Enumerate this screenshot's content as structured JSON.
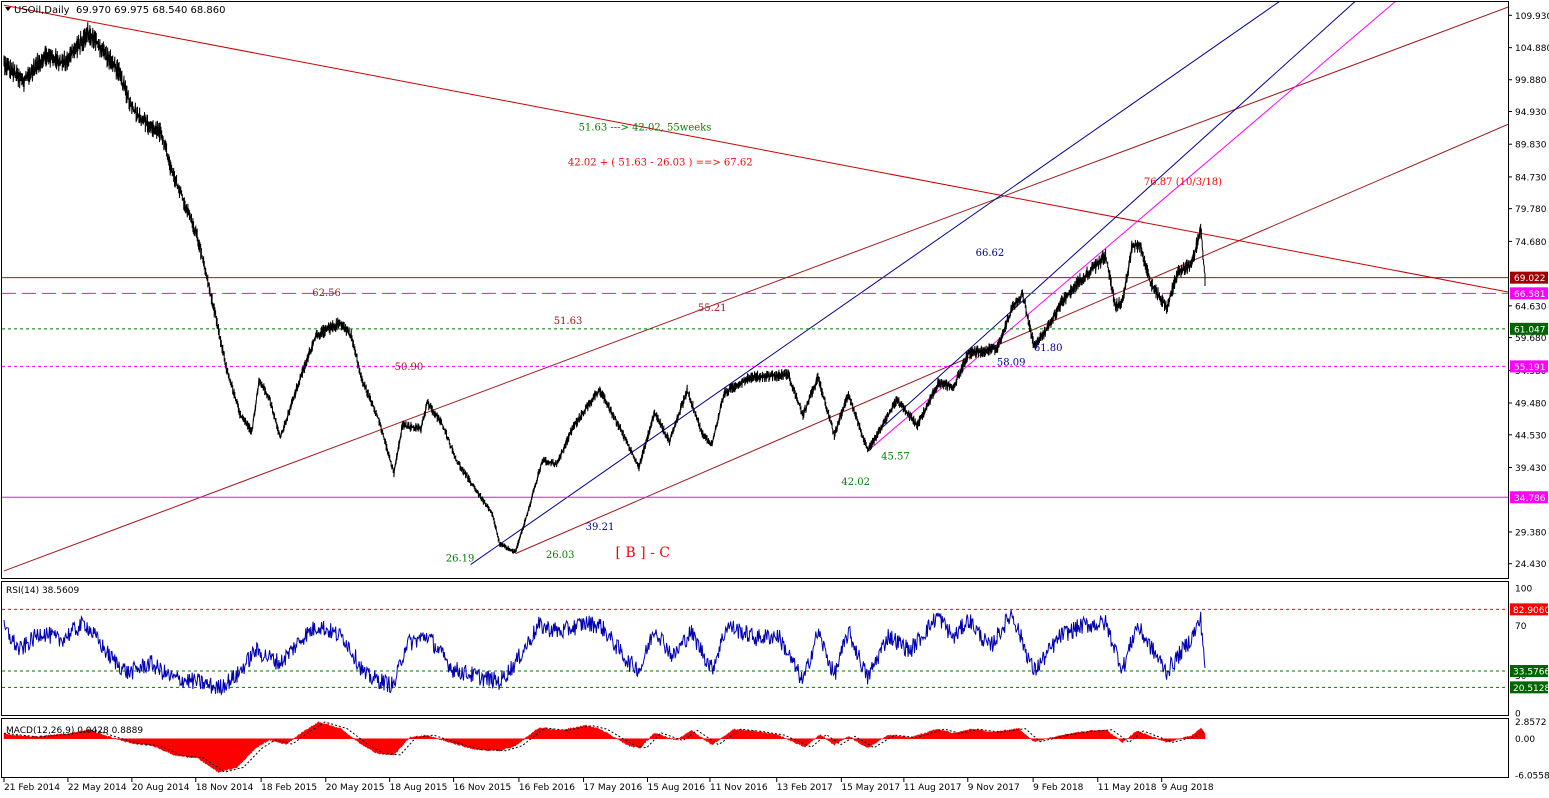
{
  "colors": {
    "background": "#ffffff",
    "frame": "#000000",
    "price": "#000000",
    "rsi": "#0000b0",
    "macd_fill": "#ff0000",
    "red_line": "#cc0000",
    "brown_line": "#a01818",
    "blue_line": "#000090",
    "magenta": "#ff00ff",
    "green_label": "#008000",
    "green_dash": "#007a00",
    "tag_brown": "#a00000",
    "tag_green": "#006400",
    "tag_magenta": "#ff00ff",
    "tag_red": "#ff0000"
  },
  "chart_data": {
    "type": "line",
    "title": "USOil,Daily",
    "ohlc": "69.970 69.975 68.540 68.860",
    "x_range": [
      "2014-02-21",
      "2018-10-09"
    ],
    "price_axis": {
      "range": [
        22.2,
        112.0
      ],
      "ticks": [
        "109.930",
        "104.880",
        "99.880",
        "94.930",
        "89.830",
        "84.730",
        "79.780",
        "74.680",
        "64.630",
        "59.680",
        "54.580",
        "49.480",
        "44.530",
        "39.430",
        "29.380",
        "24.430"
      ]
    },
    "x_ticks": [
      "21 Feb 2014",
      "22 May 2014",
      "20 Aug 2014",
      "18 Nov 2014",
      "18 Feb 2015",
      "20 May 2015",
      "18 Aug 2015",
      "16 Nov 2015",
      "16 Feb 2016",
      "17 May 2016",
      "15 Aug 2016",
      "11 Nov 2016",
      "13 Feb 2017",
      "15 May 2017",
      "11 Aug 2017",
      "9 Nov 2017",
      "9 Feb 2018",
      "11 May 2018",
      "9 Aug 2018"
    ],
    "price_series": [
      [
        "2014-02-21",
        102.5
      ],
      [
        "2014-03-20",
        99.5
      ],
      [
        "2014-04-20",
        103.8
      ],
      [
        "2014-05-15",
        102.5
      ],
      [
        "2014-06-01",
        104.5
      ],
      [
        "2014-06-20",
        107.3
      ],
      [
        "2014-07-10",
        104.5
      ],
      [
        "2014-08-01",
        101.2
      ],
      [
        "2014-08-20",
        95.5
      ],
      [
        "2014-09-10",
        93.0
      ],
      [
        "2014-10-01",
        91.5
      ],
      [
        "2014-10-15",
        85.5
      ],
      [
        "2014-11-01",
        81.0
      ],
      [
        "2014-11-20",
        75.5
      ],
      [
        "2014-12-10",
        66.0
      ],
      [
        "2014-12-31",
        55.0
      ],
      [
        "2015-01-20",
        47.5
      ],
      [
        "2015-02-05",
        45.0
      ],
      [
        "2015-02-15",
        53.0
      ],
      [
        "2015-03-01",
        50.5
      ],
      [
        "2015-03-17",
        44.0
      ],
      [
        "2015-04-10",
        52.0
      ],
      [
        "2015-05-06",
        60.0
      ],
      [
        "2015-06-10",
        62.0
      ],
      [
        "2015-06-25",
        60.0
      ],
      [
        "2015-07-10",
        53.0
      ],
      [
        "2015-08-01",
        47.5
      ],
      [
        "2015-08-24",
        38.5
      ],
      [
        "2015-09-05",
        46.0
      ],
      [
        "2015-10-01",
        45.5
      ],
      [
        "2015-10-10",
        49.5
      ],
      [
        "2015-11-01",
        46.0
      ],
      [
        "2015-11-20",
        40.5
      ],
      [
        "2015-12-20",
        35.5
      ],
      [
        "2016-01-10",
        32.0
      ],
      [
        "2016-01-20",
        27.5
      ],
      [
        "2016-02-11",
        26.2
      ],
      [
        "2016-03-01",
        33.0
      ],
      [
        "2016-03-20",
        40.5
      ],
      [
        "2016-04-10",
        40.0
      ],
      [
        "2016-05-01",
        45.5
      ],
      [
        "2016-06-08",
        51.6
      ],
      [
        "2016-07-10",
        45.0
      ],
      [
        "2016-08-03",
        39.5
      ],
      [
        "2016-08-25",
        48.0
      ],
      [
        "2016-09-15",
        43.5
      ],
      [
        "2016-10-10",
        51.5
      ],
      [
        "2016-11-01",
        44.5
      ],
      [
        "2016-11-14",
        43.0
      ],
      [
        "2016-12-01",
        51.0
      ],
      [
        "2017-01-05",
        53.5
      ],
      [
        "2017-02-15",
        53.8
      ],
      [
        "2017-03-01",
        54.0
      ],
      [
        "2017-03-22",
        47.5
      ],
      [
        "2017-04-12",
        53.5
      ],
      [
        "2017-05-05",
        44.5
      ],
      [
        "2017-05-25",
        51.0
      ],
      [
        "2017-06-21",
        42.0
      ],
      [
        "2017-07-10",
        45.5
      ],
      [
        "2017-08-01",
        50.0
      ],
      [
        "2017-08-30",
        46.0
      ],
      [
        "2017-09-28",
        52.5
      ],
      [
        "2017-10-20",
        52.0
      ],
      [
        "2017-11-10",
        57.2
      ],
      [
        "2017-12-20",
        58.0
      ],
      [
        "2018-01-10",
        64.0
      ],
      [
        "2018-01-25",
        66.6
      ],
      [
        "2018-02-10",
        58.5
      ],
      [
        "2018-03-01",
        61.0
      ],
      [
        "2018-03-20",
        65.0
      ],
      [
        "2018-04-19",
        69.0
      ],
      [
        "2018-05-05",
        70.5
      ],
      [
        "2018-05-22",
        72.5
      ],
      [
        "2018-06-05",
        64.5
      ],
      [
        "2018-06-15",
        65.5
      ],
      [
        "2018-06-29",
        74.2
      ],
      [
        "2018-07-10",
        74.0
      ],
      [
        "2018-07-25",
        68.0
      ],
      [
        "2018-08-16",
        64.4
      ],
      [
        "2018-09-01",
        70.0
      ],
      [
        "2018-09-20",
        71.0
      ],
      [
        "2018-10-03",
        76.8
      ],
      [
        "2018-10-09",
        68.9
      ]
    ],
    "lines": [
      {
        "kind": "trend",
        "color": "red",
        "from": [
          "2014-02-21",
          111.5
        ],
        "to": [
          "2018-10-09",
          75.8
        ]
      },
      {
        "kind": "trend",
        "color": "brown",
        "from": [
          "2014-02-21",
          23.3
        ],
        "to": [
          "2018-10-09",
          93.5
        ]
      },
      {
        "kind": "trend",
        "color": "brown",
        "from": [
          "2016-02-11",
          26.0
        ],
        "to": [
          "2018-10-09",
          72.5
        ]
      },
      {
        "kind": "trend",
        "color": "blue",
        "from": [
          "2015-12-10",
          24.3
        ],
        "to": [
          "2018-10-09",
          104.0
        ]
      },
      {
        "kind": "trend",
        "color": "blue",
        "from": [
          "2017-07-10",
          45.5
        ],
        "to": [
          "2018-10-09",
          91.0
        ]
      },
      {
        "kind": "trend",
        "color": "magenta",
        "from": [
          "2017-06-21",
          42.0
        ],
        "to": [
          "2018-10-09",
          86.8
        ]
      },
      {
        "kind": "hline",
        "color": "brown",
        "style": "solid",
        "value": 69.022
      },
      {
        "kind": "hline",
        "color": "magenta",
        "style": "longdash",
        "value": 66.581
      },
      {
        "kind": "hline",
        "color": "green",
        "style": "dash",
        "value": 61.047
      },
      {
        "kind": "hline",
        "color": "magenta",
        "style": "dash",
        "value": 55.191
      },
      {
        "kind": "hline",
        "color": "magenta",
        "style": "solid",
        "value": 34.786
      }
    ],
    "price_tags": [
      {
        "text": "69.022",
        "value": 69.022,
        "color": "brown"
      },
      {
        "text": "66.581",
        "value": 66.581,
        "color": "magenta"
      },
      {
        "text": "61.047",
        "value": 61.047,
        "color": "green"
      },
      {
        "text": "55.191",
        "value": 55.191,
        "color": "magenta"
      },
      {
        "text": "34.786",
        "value": 34.786,
        "color": "magenta"
      }
    ],
    "annotations": [
      {
        "text": "51.63 ---> 42.02,  55weeks",
        "at": [
          "2016-05-10",
          92.0
        ],
        "color": "green"
      },
      {
        "text": "42.02 + ( 51.63 - 26.03 ) ==> 67.62",
        "at": [
          "2016-04-25",
          86.5
        ],
        "color": "red"
      },
      {
        "text": "76.87  (10/3/18)",
        "at": [
          "2018-07-15",
          83.5
        ],
        "color": "red"
      },
      {
        "text": "66.62",
        "at": [
          "2017-11-20",
          72.4
        ],
        "color": "blue"
      },
      {
        "text": "62.56",
        "at": [
          "2015-05-01",
          66.2
        ],
        "color": "brown"
      },
      {
        "text": "55.21",
        "at": [
          "2016-10-25",
          63.8
        ],
        "color": "brown"
      },
      {
        "text": "51.63",
        "at": [
          "2016-04-05",
          61.8
        ],
        "color": "brown"
      },
      {
        "text": "50.90",
        "at": [
          "2015-08-25",
          54.6
        ],
        "color": "brown"
      },
      {
        "text": "61.80",
        "at": [
          "2018-02-10",
          57.6
        ],
        "color": "blue"
      },
      {
        "text": "58.09",
        "at": [
          "2017-12-20",
          55.3
        ],
        "color": "blue"
      },
      {
        "text": "45.57",
        "at": [
          "2017-07-10",
          40.7
        ],
        "color": "green"
      },
      {
        "text": "42.02",
        "at": [
          "2017-05-15",
          36.7
        ],
        "color": "green"
      },
      {
        "text": "39.21",
        "at": [
          "2016-05-20",
          29.7
        ],
        "color": "blue"
      },
      {
        "text": "26.19",
        "at": [
          "2015-11-05",
          24.8
        ],
        "color": "green"
      },
      {
        "text": "26.03",
        "at": [
          "2016-03-25",
          25.3
        ],
        "color": "green"
      },
      {
        "text": "[ B ] - C",
        "at": [
          "2016-07-01",
          25.5
        ],
        "color": "red"
      }
    ],
    "rsi": {
      "label": "RSI(14) 38.5609",
      "range": [
        0,
        100
      ],
      "ticks": [
        "100",
        "70",
        "30",
        "0"
      ],
      "levels": [
        {
          "text": "82.9060",
          "value": 82.906,
          "color": "red"
        },
        {
          "text": "33.5766",
          "value": 33.5766,
          "color": "green"
        },
        {
          "text": "20.5128",
          "value": 20.5128,
          "color": "green"
        }
      ],
      "series": [
        [
          "2014-02-21",
          68
        ],
        [
          "2014-03-15",
          50
        ],
        [
          "2014-04-15",
          65
        ],
        [
          "2014-05-10",
          58
        ],
        [
          "2014-06-15",
          72
        ],
        [
          "2014-07-20",
          45
        ],
        [
          "2014-08-15",
          32
        ],
        [
          "2014-09-15",
          40
        ],
        [
          "2014-10-15",
          28
        ],
        [
          "2014-11-20",
          25
        ],
        [
          "2014-12-20",
          20
        ],
        [
          "2015-01-15",
          30
        ],
        [
          "2015-02-10",
          50
        ],
        [
          "2015-03-17",
          40
        ],
        [
          "2015-04-20",
          62
        ],
        [
          "2015-05-10",
          70
        ],
        [
          "2015-06-15",
          60
        ],
        [
          "2015-07-15",
          30
        ],
        [
          "2015-08-24",
          22
        ],
        [
          "2015-09-10",
          55
        ],
        [
          "2015-10-10",
          62
        ],
        [
          "2015-11-15",
          35
        ],
        [
          "2015-12-15",
          30
        ],
        [
          "2016-01-20",
          25
        ],
        [
          "2016-02-11",
          40
        ],
        [
          "2016-03-15",
          70
        ],
        [
          "2016-04-15",
          65
        ],
        [
          "2016-05-20",
          72
        ],
        [
          "2016-06-10",
          70
        ],
        [
          "2016-07-20",
          40
        ],
        [
          "2016-08-05",
          35
        ],
        [
          "2016-08-25",
          68
        ],
        [
          "2016-09-20",
          45
        ],
        [
          "2016-10-15",
          65
        ],
        [
          "2016-11-14",
          35
        ],
        [
          "2016-12-05",
          70
        ],
        [
          "2017-01-15",
          60
        ],
        [
          "2017-02-15",
          62
        ],
        [
          "2017-03-22",
          25
        ],
        [
          "2017-04-12",
          65
        ],
        [
          "2017-05-05",
          30
        ],
        [
          "2017-05-25",
          65
        ],
        [
          "2017-06-21",
          28
        ],
        [
          "2017-07-20",
          62
        ],
        [
          "2017-08-20",
          50
        ],
        [
          "2017-09-28",
          78
        ],
        [
          "2017-10-20",
          60
        ],
        [
          "2017-11-10",
          75
        ],
        [
          "2017-12-10",
          52
        ],
        [
          "2018-01-10",
          80
        ],
        [
          "2018-02-10",
          33
        ],
        [
          "2018-03-20",
          62
        ],
        [
          "2018-04-20",
          70
        ],
        [
          "2018-05-22",
          72
        ],
        [
          "2018-06-15",
          35
        ],
        [
          "2018-07-05",
          70
        ],
        [
          "2018-08-16",
          33
        ],
        [
          "2018-09-20",
          60
        ],
        [
          "2018-10-03",
          75
        ],
        [
          "2018-10-09",
          38.5609
        ]
      ]
    },
    "macd": {
      "label": "MACD(12,26,9) 0.0428 0.8889",
      "range": [
        -6.4,
        3.3
      ],
      "ticks": [
        "2.8572",
        "0.00",
        "-6.0558"
      ],
      "series": [
        [
          "2014-02-21",
          0.8
        ],
        [
          "2014-04-01",
          0.3
        ],
        [
          "2014-05-20",
          0.8
        ],
        [
          "2014-06-20",
          1.5
        ],
        [
          "2014-07-20",
          0.3
        ],
        [
          "2014-08-20",
          -0.8
        ],
        [
          "2014-09-20",
          -1.2
        ],
        [
          "2014-10-20",
          -2.8
        ],
        [
          "2014-11-20",
          -3.2
        ],
        [
          "2014-12-20",
          -5.6
        ],
        [
          "2015-01-15",
          -4.8
        ],
        [
          "2015-02-10",
          -1.6
        ],
        [
          "2015-03-01",
          -0.2
        ],
        [
          "2015-03-25",
          -0.9
        ],
        [
          "2015-04-20",
          1.3
        ],
        [
          "2015-05-10",
          2.8
        ],
        [
          "2015-06-10",
          1.7
        ],
        [
          "2015-07-10",
          -1.0
        ],
        [
          "2015-08-01",
          -2.5
        ],
        [
          "2015-08-24",
          -2.7
        ],
        [
          "2015-09-15",
          0.2
        ],
        [
          "2015-10-10",
          0.6
        ],
        [
          "2015-11-10",
          -0.6
        ],
        [
          "2015-12-15",
          -1.8
        ],
        [
          "2016-01-20",
          -2.0
        ],
        [
          "2016-02-11",
          -1.2
        ],
        [
          "2016-03-15",
          1.8
        ],
        [
          "2016-04-15",
          1.4
        ],
        [
          "2016-05-20",
          2.2
        ],
        [
          "2016-06-10",
          1.6
        ],
        [
          "2016-07-20",
          -1.2
        ],
        [
          "2016-08-05",
          -1.5
        ],
        [
          "2016-08-25",
          1.0
        ],
        [
          "2016-09-25",
          -0.3
        ],
        [
          "2016-10-15",
          1.4
        ],
        [
          "2016-11-14",
          -1.0
        ],
        [
          "2016-12-15",
          1.6
        ],
        [
          "2017-01-15",
          1.2
        ],
        [
          "2017-02-15",
          0.6
        ],
        [
          "2017-03-25",
          -1.4
        ],
        [
          "2017-04-15",
          0.7
        ],
        [
          "2017-05-05",
          -1.0
        ],
        [
          "2017-05-25",
          0.4
        ],
        [
          "2017-06-21",
          -1.5
        ],
        [
          "2017-07-20",
          0.6
        ],
        [
          "2017-08-20",
          0.2
        ],
        [
          "2017-09-28",
          1.6
        ],
        [
          "2017-10-20",
          0.9
        ],
        [
          "2017-11-15",
          1.6
        ],
        [
          "2017-12-15",
          1.1
        ],
        [
          "2018-01-20",
          1.7
        ],
        [
          "2018-02-10",
          -0.5
        ],
        [
          "2018-03-20",
          0.6
        ],
        [
          "2018-04-20",
          1.2
        ],
        [
          "2018-05-22",
          1.5
        ],
        [
          "2018-06-15",
          -0.6
        ],
        [
          "2018-07-05",
          1.3
        ],
        [
          "2018-08-16",
          -0.6
        ],
        [
          "2018-09-20",
          0.5
        ],
        [
          "2018-10-03",
          1.8
        ],
        [
          "2018-10-09",
          0.9
        ]
      ]
    }
  }
}
